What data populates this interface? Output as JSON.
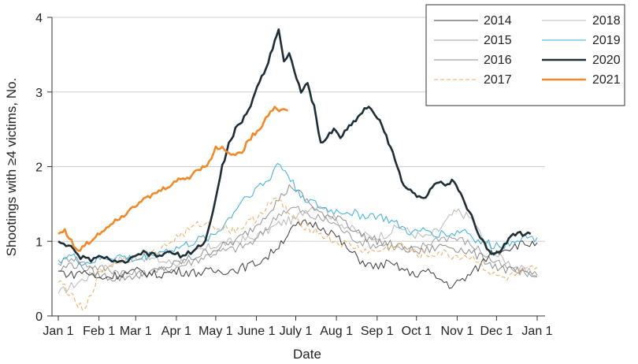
{
  "chart_data": {
    "type": "line",
    "title": "",
    "xlabel": "Date",
    "ylabel": "Shootings with ≥4 victims, No.",
    "ylim": [
      0,
      4
    ],
    "yticks": [
      "0",
      "1",
      "2",
      "3",
      "4"
    ],
    "xticks": [
      "Jan 1",
      "Feb 1",
      "Mar 1",
      "Apr 1",
      "May 1",
      "June 1",
      "July 1",
      "Aug 1",
      "Sep 1",
      "Oct 1",
      "Nov 1",
      "Dec 1",
      "Jan 1"
    ],
    "xtick_days": [
      0,
      31,
      59,
      90,
      120,
      151,
      181,
      212,
      243,
      273,
      304,
      334,
      365
    ],
    "grid": "horizontal",
    "legend_position": "top-right",
    "series": [
      {
        "name": "2014",
        "color": "#3a3a3a",
        "width": 1,
        "dash": "",
        "points": [
          [
            0,
            0.6
          ],
          [
            10,
            0.55
          ],
          [
            20,
            0.6
          ],
          [
            30,
            0.5
          ],
          [
            45,
            0.55
          ],
          [
            60,
            0.6
          ],
          [
            75,
            0.55
          ],
          [
            90,
            0.6
          ],
          [
            105,
            0.58
          ],
          [
            120,
            0.6
          ],
          [
            135,
            0.62
          ],
          [
            150,
            0.7
          ],
          [
            160,
            0.8
          ],
          [
            168,
            0.95
          ],
          [
            175,
            1.1
          ],
          [
            181,
            1.2
          ],
          [
            190,
            1.25
          ],
          [
            200,
            1.2
          ],
          [
            210,
            1.1
          ],
          [
            220,
            0.9
          ],
          [
            230,
            0.75
          ],
          [
            240,
            0.65
          ],
          [
            250,
            0.7
          ],
          [
            260,
            0.65
          ],
          [
            270,
            0.55
          ],
          [
            280,
            0.6
          ],
          [
            290,
            0.5
          ],
          [
            300,
            0.4
          ],
          [
            310,
            0.5
          ],
          [
            320,
            0.65
          ],
          [
            330,
            0.85
          ],
          [
            340,
            0.9
          ],
          [
            350,
            0.95
          ],
          [
            365,
            0.98
          ]
        ]
      },
      {
        "name": "2015",
        "color": "#9a9a9a",
        "width": 1,
        "dash": "",
        "points": [
          [
            0,
            0.7
          ],
          [
            10,
            0.8
          ],
          [
            20,
            0.7
          ],
          [
            30,
            0.65
          ],
          [
            45,
            0.6
          ],
          [
            60,
            0.55
          ],
          [
            75,
            0.6
          ],
          [
            90,
            0.65
          ],
          [
            105,
            0.75
          ],
          [
            120,
            0.85
          ],
          [
            135,
            0.9
          ],
          [
            150,
            1.0
          ],
          [
            160,
            1.2
          ],
          [
            170,
            1.4
          ],
          [
            181,
            1.45
          ],
          [
            190,
            1.35
          ],
          [
            200,
            1.3
          ],
          [
            210,
            1.25
          ],
          [
            220,
            1.1
          ],
          [
            230,
            1.0
          ],
          [
            240,
            0.95
          ],
          [
            250,
            0.95
          ],
          [
            260,
            0.9
          ],
          [
            270,
            0.88
          ],
          [
            280,
            0.95
          ],
          [
            290,
            1.05
          ],
          [
            300,
            1.05
          ],
          [
            310,
            1.0
          ],
          [
            320,
            0.9
          ],
          [
            330,
            0.75
          ],
          [
            340,
            0.65
          ],
          [
            350,
            0.6
          ],
          [
            365,
            0.55
          ]
        ]
      },
      {
        "name": "2016",
        "color": "#8c8c8c",
        "width": 1,
        "dash": "",
        "points": [
          [
            0,
            0.6
          ],
          [
            10,
            0.7
          ],
          [
            20,
            0.65
          ],
          [
            30,
            0.55
          ],
          [
            45,
            0.5
          ],
          [
            60,
            0.55
          ],
          [
            75,
            0.6
          ],
          [
            90,
            0.7
          ],
          [
            105,
            0.8
          ],
          [
            120,
            0.9
          ],
          [
            135,
            1.0
          ],
          [
            150,
            1.2
          ],
          [
            160,
            1.4
          ],
          [
            170,
            1.6
          ],
          [
            178,
            1.75
          ],
          [
            186,
            1.6
          ],
          [
            195,
            1.45
          ],
          [
            205,
            1.3
          ],
          [
            215,
            1.35
          ],
          [
            225,
            1.15
          ],
          [
            235,
            1.05
          ],
          [
            245,
            1.0
          ],
          [
            255,
            0.95
          ],
          [
            265,
            0.9
          ],
          [
            275,
            0.85
          ],
          [
            285,
            0.9
          ],
          [
            295,
            0.95
          ],
          [
            305,
            0.9
          ],
          [
            315,
            0.85
          ],
          [
            325,
            0.75
          ],
          [
            335,
            0.65
          ],
          [
            345,
            0.6
          ],
          [
            355,
            0.55
          ],
          [
            365,
            0.52
          ]
        ]
      },
      {
        "name": "2017",
        "color": "#f0a860",
        "width": 1,
        "dash": "5,3",
        "points": [
          [
            0,
            0.45
          ],
          [
            5,
            0.4
          ],
          [
            10,
            0.25
          ],
          [
            15,
            0.15
          ],
          [
            20,
            0.05
          ],
          [
            25,
            0.3
          ],
          [
            30,
            0.55
          ],
          [
            40,
            0.7
          ],
          [
            50,
            0.75
          ],
          [
            60,
            0.8
          ],
          [
            75,
            0.85
          ],
          [
            90,
            1.05
          ],
          [
            100,
            1.15
          ],
          [
            110,
            1.25
          ],
          [
            120,
            1.2
          ],
          [
            135,
            1.15
          ],
          [
            150,
            1.3
          ],
          [
            160,
            1.5
          ],
          [
            168,
            1.55
          ],
          [
            175,
            1.4
          ],
          [
            181,
            1.25
          ],
          [
            190,
            1.2
          ],
          [
            200,
            1.1
          ],
          [
            210,
            1.0
          ],
          [
            220,
            0.95
          ],
          [
            230,
            0.9
          ],
          [
            240,
            0.85
          ],
          [
            250,
            0.9
          ],
          [
            260,
            0.95
          ],
          [
            270,
            0.85
          ],
          [
            280,
            0.8
          ],
          [
            290,
            0.85
          ],
          [
            300,
            0.8
          ],
          [
            310,
            0.8
          ],
          [
            320,
            0.75
          ],
          [
            330,
            0.55
          ],
          [
            340,
            0.5
          ],
          [
            350,
            0.55
          ],
          [
            365,
            0.65
          ]
        ]
      },
      {
        "name": "2018",
        "color": "#b8b8b8",
        "width": 1,
        "dash": "",
        "points": [
          [
            0,
            0.3
          ],
          [
            10,
            0.4
          ],
          [
            20,
            0.5
          ],
          [
            30,
            0.6
          ],
          [
            45,
            0.75
          ],
          [
            60,
            0.8
          ],
          [
            75,
            0.75
          ],
          [
            90,
            0.7
          ],
          [
            105,
            0.85
          ],
          [
            120,
            0.95
          ],
          [
            135,
            1.0
          ],
          [
            150,
            1.05
          ],
          [
            160,
            1.15
          ],
          [
            170,
            1.25
          ],
          [
            181,
            1.3
          ],
          [
            190,
            1.45
          ],
          [
            200,
            1.5
          ],
          [
            210,
            1.3
          ],
          [
            220,
            1.2
          ],
          [
            230,
            1.1
          ],
          [
            240,
            1.05
          ],
          [
            250,
            1.1
          ],
          [
            260,
            1.2
          ],
          [
            270,
            1.1
          ],
          [
            280,
            1.05
          ],
          [
            290,
            1.15
          ],
          [
            300,
            1.35
          ],
          [
            305,
            1.4
          ],
          [
            315,
            1.3
          ],
          [
            325,
            1.0
          ],
          [
            335,
            0.8
          ],
          [
            345,
            0.7
          ],
          [
            355,
            0.6
          ],
          [
            365,
            0.55
          ]
        ]
      },
      {
        "name": "2019",
        "color": "#3aaed8",
        "width": 1,
        "dash": "",
        "points": [
          [
            0,
            0.75
          ],
          [
            10,
            0.8
          ],
          [
            20,
            0.7
          ],
          [
            30,
            0.75
          ],
          [
            45,
            0.8
          ],
          [
            60,
            0.75
          ],
          [
            75,
            0.85
          ],
          [
            90,
            0.9
          ],
          [
            105,
            1.0
          ],
          [
            120,
            1.1
          ],
          [
            130,
            1.3
          ],
          [
            140,
            1.55
          ],
          [
            150,
            1.7
          ],
          [
            160,
            1.8
          ],
          [
            167,
            2.05
          ],
          [
            175,
            1.9
          ],
          [
            181,
            1.7
          ],
          [
            190,
            1.55
          ],
          [
            200,
            1.45
          ],
          [
            210,
            1.4
          ],
          [
            220,
            1.4
          ],
          [
            230,
            1.35
          ],
          [
            240,
            1.35
          ],
          [
            250,
            1.3
          ],
          [
            260,
            1.2
          ],
          [
            270,
            1.1
          ],
          [
            280,
            1.15
          ],
          [
            290,
            1.1
          ],
          [
            300,
            1.1
          ],
          [
            310,
            1.15
          ],
          [
            320,
            1.0
          ],
          [
            330,
            0.95
          ],
          [
            340,
            0.95
          ],
          [
            350,
            1.05
          ],
          [
            365,
            1.05
          ]
        ]
      },
      {
        "name": "2020",
        "color": "#1e2e36",
        "width": 2.6,
        "dash": "",
        "points": [
          [
            0,
            1.0
          ],
          [
            8,
            0.95
          ],
          [
            15,
            0.8
          ],
          [
            25,
            0.75
          ],
          [
            35,
            0.8
          ],
          [
            45,
            0.7
          ],
          [
            55,
            0.75
          ],
          [
            65,
            0.85
          ],
          [
            75,
            0.8
          ],
          [
            85,
            0.85
          ],
          [
            95,
            0.8
          ],
          [
            105,
            0.9
          ],
          [
            112,
            1.0
          ],
          [
            118,
            1.4
          ],
          [
            125,
            2.0
          ],
          [
            130,
            2.3
          ],
          [
            135,
            2.5
          ],
          [
            140,
            2.6
          ],
          [
            145,
            2.75
          ],
          [
            150,
            3.0
          ],
          [
            155,
            3.2
          ],
          [
            160,
            3.4
          ],
          [
            165,
            3.7
          ],
          [
            168,
            3.85
          ],
          [
            172,
            3.4
          ],
          [
            176,
            3.5
          ],
          [
            180,
            3.3
          ],
          [
            185,
            3.0
          ],
          [
            190,
            3.1
          ],
          [
            195,
            2.8
          ],
          [
            200,
            2.3
          ],
          [
            205,
            2.4
          ],
          [
            210,
            2.5
          ],
          [
            215,
            2.4
          ],
          [
            220,
            2.5
          ],
          [
            225,
            2.6
          ],
          [
            230,
            2.7
          ],
          [
            235,
            2.8
          ],
          [
            240,
            2.75
          ],
          [
            245,
            2.6
          ],
          [
            250,
            2.4
          ],
          [
            255,
            2.2
          ],
          [
            260,
            1.9
          ],
          [
            265,
            1.7
          ],
          [
            270,
            1.65
          ],
          [
            275,
            1.6
          ],
          [
            280,
            1.6
          ],
          [
            285,
            1.75
          ],
          [
            290,
            1.8
          ],
          [
            295,
            1.75
          ],
          [
            300,
            1.8
          ],
          [
            305,
            1.7
          ],
          [
            310,
            1.5
          ],
          [
            315,
            1.35
          ],
          [
            320,
            1.1
          ],
          [
            325,
            0.95
          ],
          [
            330,
            0.85
          ],
          [
            335,
            0.85
          ],
          [
            340,
            0.95
          ],
          [
            345,
            1.1
          ],
          [
            350,
            1.1
          ],
          [
            360,
            1.1
          ]
        ]
      },
      {
        "name": "2021",
        "color": "#ee8a2a",
        "width": 2.6,
        "dash": "",
        "points": [
          [
            0,
            1.1
          ],
          [
            5,
            1.15
          ],
          [
            10,
            1.0
          ],
          [
            15,
            0.85
          ],
          [
            20,
            0.95
          ],
          [
            25,
            1.0
          ],
          [
            30,
            1.1
          ],
          [
            35,
            1.15
          ],
          [
            40,
            1.25
          ],
          [
            45,
            1.3
          ],
          [
            50,
            1.35
          ],
          [
            55,
            1.45
          ],
          [
            60,
            1.5
          ],
          [
            65,
            1.55
          ],
          [
            70,
            1.6
          ],
          [
            75,
            1.65
          ],
          [
            80,
            1.7
          ],
          [
            85,
            1.75
          ],
          [
            90,
            1.8
          ],
          [
            95,
            1.85
          ],
          [
            100,
            1.85
          ],
          [
            105,
            1.95
          ],
          [
            110,
            2.0
          ],
          [
            115,
            2.05
          ],
          [
            120,
            2.25
          ],
          [
            125,
            2.25
          ],
          [
            130,
            2.2
          ],
          [
            135,
            2.15
          ],
          [
            140,
            2.2
          ],
          [
            145,
            2.35
          ],
          [
            150,
            2.45
          ],
          [
            155,
            2.55
          ],
          [
            160,
            2.7
          ],
          [
            165,
            2.8
          ],
          [
            170,
            2.75
          ],
          [
            175,
            2.75
          ]
        ]
      }
    ]
  }
}
